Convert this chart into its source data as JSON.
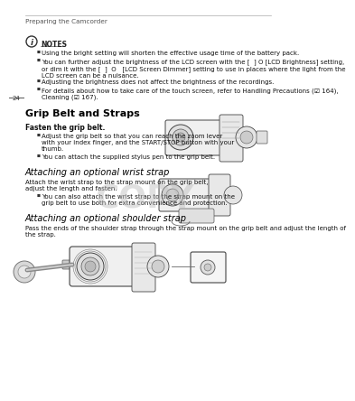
{
  "background_color": "#ffffff",
  "header_line_color": "#aaaaaa",
  "header_text": "Preparing the Camcorder",
  "header_fontsize": 5.2,
  "header_color": "#555555",
  "page_number": "24",
  "body_fontsize": 5.0,
  "body_color": "#111111",
  "section_color": "#000000",
  "notes_title": "NOTES",
  "notes_fontsize": 5.5,
  "notes_bullets": [
    "Using the bright setting will shorten the effective usage time of the battery pack.",
    "You can further adjust the brightness of the LCD screen with the [  ] O [LCD Brightness] setting,\nor dim it with the [  ]  O   [LCD Screen Dimmer] setting to use in places where the light from the\nLCD screen can be a nuisance.",
    "Adjusting the brightness does not affect the brightness of the recordings.",
    "For details about how to take care of the touch screen, refer to Handling Precautions (☑ 164),\nCleaning (☑ 167)."
  ],
  "section1_title": "Grip Belt and Straps",
  "subsection1_title": "Fasten the grip belt.",
  "subsection1_bullets": [
    "Adjust the grip belt so that you can reach the zoom lever\nwith your index finger, and the START/STOP button with your\nthumb.",
    "You can attach the supplied stylus pen to the grip belt."
  ],
  "section2_title": "Attaching an optional wrist strap",
  "subsection2_text": "Attach the wrist strap to the strap mount on the grip belt,\nadjust the length and fasten.",
  "subsection2_bullet": "You can also attach the wrist strap to the strap mount on the\ngrip belt to use both for extra convenience and protection.",
  "section3_title": "Attaching an optional shoulder strap",
  "subsection3_text": "Pass the ends of the shoulder strap through the strap mount on the grip belt and adjust the length of\nthe strap.",
  "copy_text": "COPY",
  "copy_color": "#bbbbbb",
  "copy_alpha": 0.45
}
